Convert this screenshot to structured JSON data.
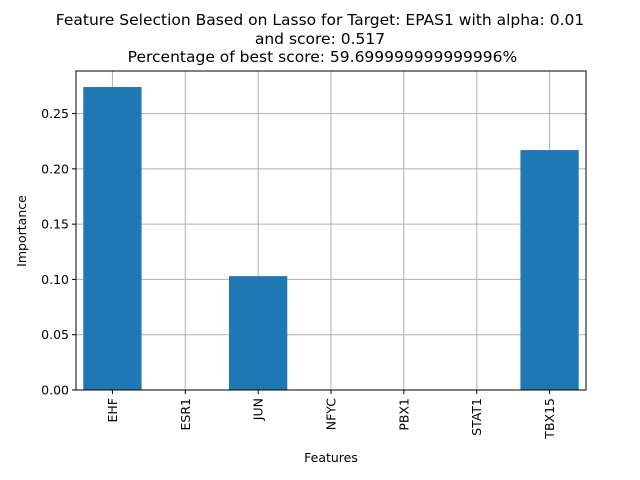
{
  "chart_data": {
    "type": "bar",
    "title_lines": [
      "Feature Selection Based on Lasso for Target: EPAS1 with alpha: 0.01",
      "and score: 0.517",
      " Percentage of best score: 59.699999999999996%"
    ],
    "xlabel": "Features",
    "ylabel": "Importance",
    "categories": [
      "EHF",
      "ESR1",
      "JUN",
      "NFYC",
      "PBX1",
      "STAT1",
      "TBX15"
    ],
    "values": [
      0.274,
      0.0,
      0.103,
      0.0,
      0.0,
      0.0,
      0.217
    ],
    "ylim": [
      0.0,
      0.2885
    ],
    "yticks": [
      0.0,
      0.05,
      0.1,
      0.15,
      0.2,
      0.25
    ],
    "ytick_labels": [
      "0.00",
      "0.05",
      "0.10",
      "0.15",
      "0.20",
      "0.25"
    ],
    "grid": true,
    "bar_color": "#1f77b4",
    "grid_color": "#b0b0b0"
  }
}
